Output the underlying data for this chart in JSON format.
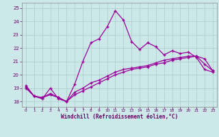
{
  "xlabel": "Windchill (Refroidissement éolien,°C)",
  "bg_color": "#cce8e8",
  "line_color": "#990099",
  "grid_color": "#aacccc",
  "xlim": [
    -0.5,
    23.5
  ],
  "ylim": [
    17.6,
    25.4
  ],
  "yticks": [
    18,
    19,
    20,
    21,
    22,
    23,
    24,
    25
  ],
  "xticks": [
    0,
    1,
    2,
    3,
    4,
    5,
    6,
    7,
    8,
    9,
    10,
    11,
    12,
    13,
    14,
    15,
    16,
    17,
    18,
    19,
    20,
    21,
    22,
    23
  ],
  "line1_x": [
    0,
    1,
    2,
    3,
    4,
    5,
    6,
    7,
    8,
    9,
    10,
    11,
    12,
    13,
    14,
    15,
    16,
    17,
    18,
    19,
    20,
    21,
    22,
    23
  ],
  "line1_y": [
    19.2,
    18.4,
    18.2,
    19.0,
    18.2,
    18.0,
    19.3,
    21.0,
    22.4,
    22.7,
    23.6,
    24.8,
    24.1,
    22.5,
    21.9,
    22.4,
    22.1,
    21.5,
    21.8,
    21.6,
    21.7,
    21.3,
    20.4,
    20.2
  ],
  "line2_x": [
    0,
    1,
    2,
    3,
    4,
    5,
    6,
    7,
    8,
    9,
    10,
    11,
    12,
    13,
    14,
    15,
    16,
    17,
    18,
    19,
    20,
    21,
    22,
    23
  ],
  "line2_y": [
    19.0,
    18.4,
    18.3,
    18.5,
    18.3,
    18.0,
    18.5,
    18.8,
    19.1,
    19.4,
    19.7,
    20.0,
    20.2,
    20.4,
    20.5,
    20.6,
    20.8,
    20.9,
    21.1,
    21.2,
    21.3,
    21.4,
    20.8,
    20.3
  ],
  "line3_x": [
    0,
    1,
    2,
    3,
    4,
    5,
    6,
    7,
    8,
    9,
    10,
    11,
    12,
    13,
    14,
    15,
    16,
    17,
    18,
    19,
    20,
    21,
    22,
    23
  ],
  "line3_y": [
    19.1,
    18.4,
    18.3,
    18.6,
    18.3,
    18.0,
    18.7,
    19.0,
    19.4,
    19.6,
    19.9,
    20.2,
    20.4,
    20.5,
    20.6,
    20.7,
    20.9,
    21.1,
    21.2,
    21.3,
    21.4,
    21.4,
    21.2,
    20.3
  ]
}
